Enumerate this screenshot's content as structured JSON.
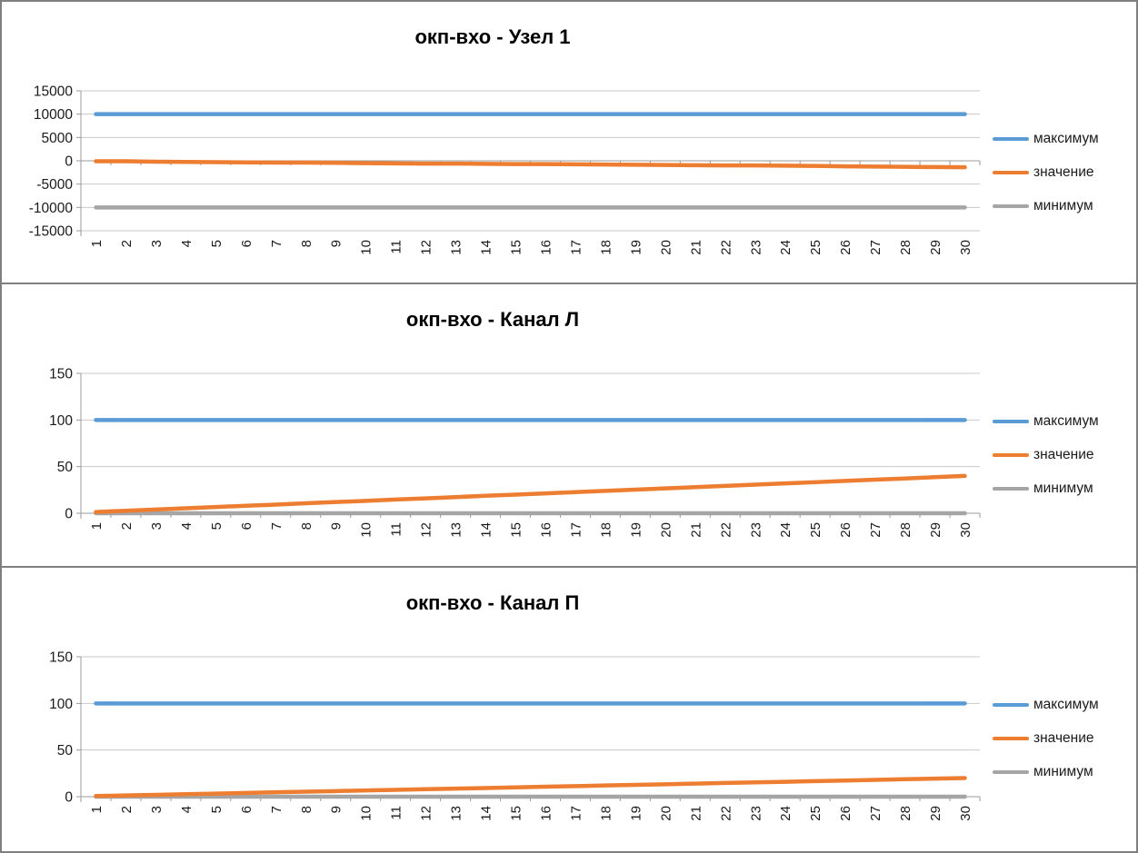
{
  "page": {
    "background": "#ffffff",
    "border_color": "#7f7f7f",
    "grid_color": "#c8c8c8",
    "axis_color": "#9b9b9b",
    "text_color": "#1a1a1a"
  },
  "chart_data": [
    {
      "type": "line",
      "title": "окп-вхо - Узел 1",
      "xlabel": "",
      "ylabel": "",
      "grid": true,
      "legend_position": "right",
      "ylim": [
        -15000,
        15000
      ],
      "y_ticks": [
        15000,
        10000,
        5000,
        0,
        -5000,
        -10000,
        -15000
      ],
      "categories": [
        "1",
        "2",
        "3",
        "4",
        "5",
        "6",
        "7",
        "8",
        "9",
        "10",
        "11",
        "12",
        "13",
        "14",
        "15",
        "16",
        "17",
        "18",
        "19",
        "20",
        "21",
        "22",
        "23",
        "24",
        "25",
        "26",
        "27",
        "28",
        "29",
        "30"
      ],
      "series": [
        {
          "name": "максимум",
          "color": "#5B9BD5",
          "values": [
            10000,
            10000,
            10000,
            10000,
            10000,
            10000,
            10000,
            10000,
            10000,
            10000,
            10000,
            10000,
            10000,
            10000,
            10000,
            10000,
            10000,
            10000,
            10000,
            10000,
            10000,
            10000,
            10000,
            10000,
            10000,
            10000,
            10000,
            10000,
            10000,
            10000
          ]
        },
        {
          "name": "значение",
          "color": "#ED7D31",
          "values": [
            -100,
            -100,
            -200,
            -250,
            -300,
            -350,
            -400,
            -400,
            -450,
            -500,
            -550,
            -600,
            -600,
            -650,
            -700,
            -700,
            -750,
            -800,
            -850,
            -900,
            -950,
            -1000,
            -1000,
            -1050,
            -1100,
            -1200,
            -1250,
            -1300,
            -1350,
            -1400
          ]
        },
        {
          "name": "минимум",
          "color": "#A5A5A5",
          "values": [
            -10000,
            -10000,
            -10000,
            -10000,
            -10000,
            -10000,
            -10000,
            -10000,
            -10000,
            -10000,
            -10000,
            -10000,
            -10000,
            -10000,
            -10000,
            -10000,
            -10000,
            -10000,
            -10000,
            -10000,
            -10000,
            -10000,
            -10000,
            -10000,
            -10000,
            -10000,
            -10000,
            -10000,
            -10000,
            -10000
          ]
        }
      ]
    },
    {
      "type": "line",
      "title": "окп-вхо - Канал Л",
      "xlabel": "",
      "ylabel": "",
      "grid": true,
      "legend_position": "right",
      "ylim": [
        0,
        150
      ],
      "y_ticks": [
        150,
        100,
        50,
        0
      ],
      "categories": [
        "1",
        "2",
        "3",
        "4",
        "5",
        "6",
        "7",
        "8",
        "9",
        "10",
        "11",
        "12",
        "13",
        "14",
        "15",
        "16",
        "17",
        "18",
        "19",
        "20",
        "21",
        "22",
        "23",
        "24",
        "25",
        "26",
        "27",
        "28",
        "29",
        "30"
      ],
      "series": [
        {
          "name": "максимум",
          "color": "#5B9BD5",
          "values": [
            100,
            100,
            100,
            100,
            100,
            100,
            100,
            100,
            100,
            100,
            100,
            100,
            100,
            100,
            100,
            100,
            100,
            100,
            100,
            100,
            100,
            100,
            100,
            100,
            100,
            100,
            100,
            100,
            100,
            100
          ]
        },
        {
          "name": "значение",
          "color": "#ED7D31",
          "values": [
            1.3,
            2.7,
            4,
            5.3,
            6.7,
            8,
            9.3,
            10.7,
            12,
            13.3,
            14.7,
            16,
            17.3,
            18.7,
            20,
            21.3,
            22.7,
            24,
            25.3,
            26.7,
            28,
            29.3,
            30.7,
            32,
            33.3,
            34.7,
            36,
            37.3,
            38.7,
            40
          ]
        },
        {
          "name": "минимум",
          "color": "#A5A5A5",
          "values": [
            0,
            0,
            0,
            0,
            0,
            0,
            0,
            0,
            0,
            0,
            0,
            0,
            0,
            0,
            0,
            0,
            0,
            0,
            0,
            0,
            0,
            0,
            0,
            0,
            0,
            0,
            0,
            0,
            0,
            0
          ]
        }
      ]
    },
    {
      "type": "line",
      "title": "окп-вхо - Канал П",
      "xlabel": "",
      "ylabel": "",
      "grid": true,
      "legend_position": "right",
      "ylim": [
        0,
        150
      ],
      "y_ticks": [
        150,
        100,
        50,
        0
      ],
      "categories": [
        "1",
        "2",
        "3",
        "4",
        "5",
        "6",
        "7",
        "8",
        "9",
        "10",
        "11",
        "12",
        "13",
        "14",
        "15",
        "16",
        "17",
        "18",
        "19",
        "20",
        "21",
        "22",
        "23",
        "24",
        "25",
        "26",
        "27",
        "28",
        "29",
        "30"
      ],
      "series": [
        {
          "name": "максимум",
          "color": "#5B9BD5",
          "values": [
            100,
            100,
            100,
            100,
            100,
            100,
            100,
            100,
            100,
            100,
            100,
            100,
            100,
            100,
            100,
            100,
            100,
            100,
            100,
            100,
            100,
            100,
            100,
            100,
            100,
            100,
            100,
            100,
            100,
            100
          ]
        },
        {
          "name": "значение",
          "color": "#ED7D31",
          "values": [
            0.7,
            1.3,
            2,
            2.7,
            3.3,
            4,
            4.7,
            5.3,
            6,
            6.7,
            7.3,
            8,
            8.7,
            9.3,
            10,
            10.7,
            11.3,
            12,
            12.7,
            13.3,
            14,
            14.7,
            15.3,
            16,
            16.7,
            17.3,
            18,
            18.7,
            19.3,
            20
          ]
        },
        {
          "name": "минимум",
          "color": "#A5A5A5",
          "values": [
            0,
            0,
            0,
            0,
            0,
            0,
            0,
            0,
            0,
            0,
            0,
            0,
            0,
            0,
            0,
            0,
            0,
            0,
            0,
            0,
            0,
            0,
            0,
            0,
            0,
            0,
            0,
            0,
            0,
            0
          ]
        }
      ]
    }
  ]
}
